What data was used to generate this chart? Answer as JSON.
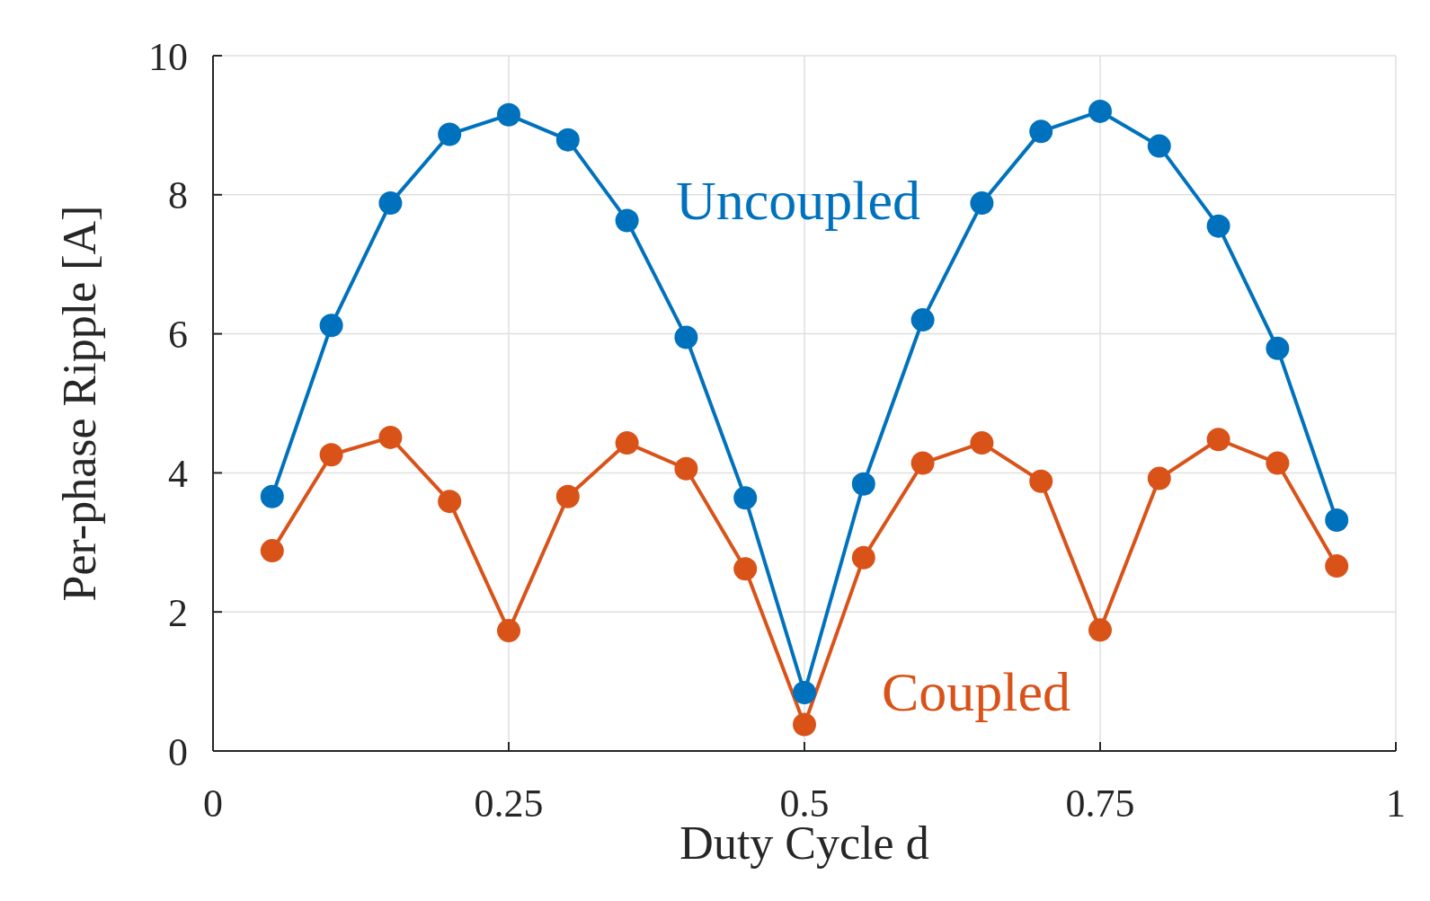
{
  "chart_data": {
    "type": "line",
    "xlabel": "Duty Cycle d",
    "ylabel": "Per-phase Ripple [A]",
    "x": [
      0.05,
      0.1,
      0.15,
      0.2,
      0.25,
      0.3,
      0.35,
      0.4,
      0.45,
      0.5,
      0.55,
      0.6,
      0.65,
      0.7,
      0.75,
      0.8,
      0.85,
      0.9,
      0.95
    ],
    "series": [
      {
        "name": "Uncoupled",
        "color": "#0072bd",
        "values": [
          3.66,
          6.12,
          7.88,
          8.87,
          9.15,
          8.79,
          7.63,
          5.95,
          3.64,
          0.84,
          3.84,
          6.2,
          7.88,
          8.91,
          9.2,
          8.7,
          7.55,
          5.79,
          3.32
        ]
      },
      {
        "name": "Coupled",
        "color": "#d95319",
        "values": [
          2.88,
          4.26,
          4.51,
          3.59,
          1.73,
          3.66,
          4.43,
          4.06,
          2.62,
          0.38,
          2.78,
          4.14,
          4.43,
          3.88,
          1.74,
          3.92,
          4.48,
          4.14,
          2.66
        ]
      }
    ],
    "xlim": [
      0,
      1
    ],
    "xticks": [
      0,
      0.25,
      0.5,
      0.75,
      1
    ],
    "ylim": [
      0,
      10
    ],
    "yticks": [
      0,
      2,
      4,
      6,
      8,
      10
    ],
    "grid": true,
    "marker": "circle",
    "line_style": "solid"
  }
}
